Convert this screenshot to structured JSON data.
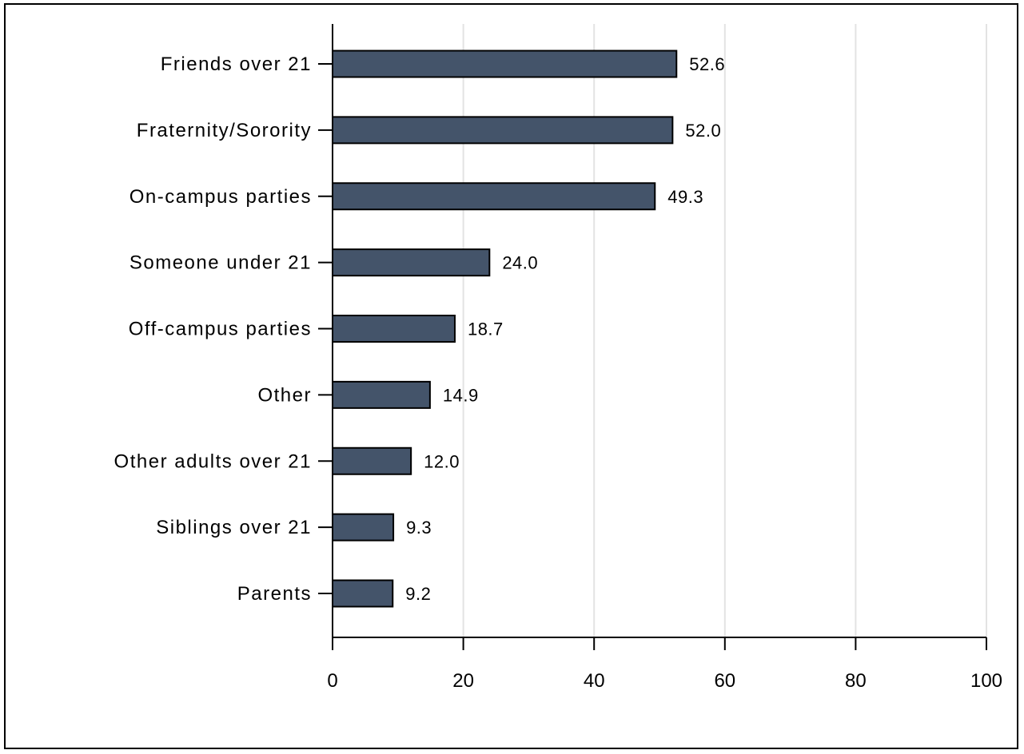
{
  "chart_data": {
    "type": "bar",
    "orientation": "horizontal",
    "title": "",
    "xlabel": "",
    "ylabel": "",
    "categories": [
      "Friends over 21",
      "Fraternity/Sorority",
      "On-campus parties",
      "Someone under 21",
      "Off-campus parties",
      "Other",
      "Other adults over 21",
      "Siblings over 21",
      "Parents"
    ],
    "values": [
      52.6,
      52.0,
      49.3,
      24.0,
      18.7,
      14.9,
      12.0,
      9.3,
      9.2
    ],
    "value_labels": [
      "52.6",
      "52.0",
      "49.3",
      "24.0",
      "18.7",
      "14.9",
      "12.0",
      "9.3",
      "9.2"
    ],
    "xlim": [
      0,
      100
    ],
    "xticks": [
      0,
      20,
      40,
      60,
      80,
      100
    ],
    "xtick_labels": [
      "0",
      "20",
      "40",
      "60",
      "80",
      "100"
    ],
    "grid": "vertical",
    "legend": "none",
    "colors": {
      "bar_fill": "#44546a",
      "bar_stroke": "#000000",
      "grid": "#e3e3e3",
      "axis": "#000000",
      "background": "#ffffff"
    }
  }
}
